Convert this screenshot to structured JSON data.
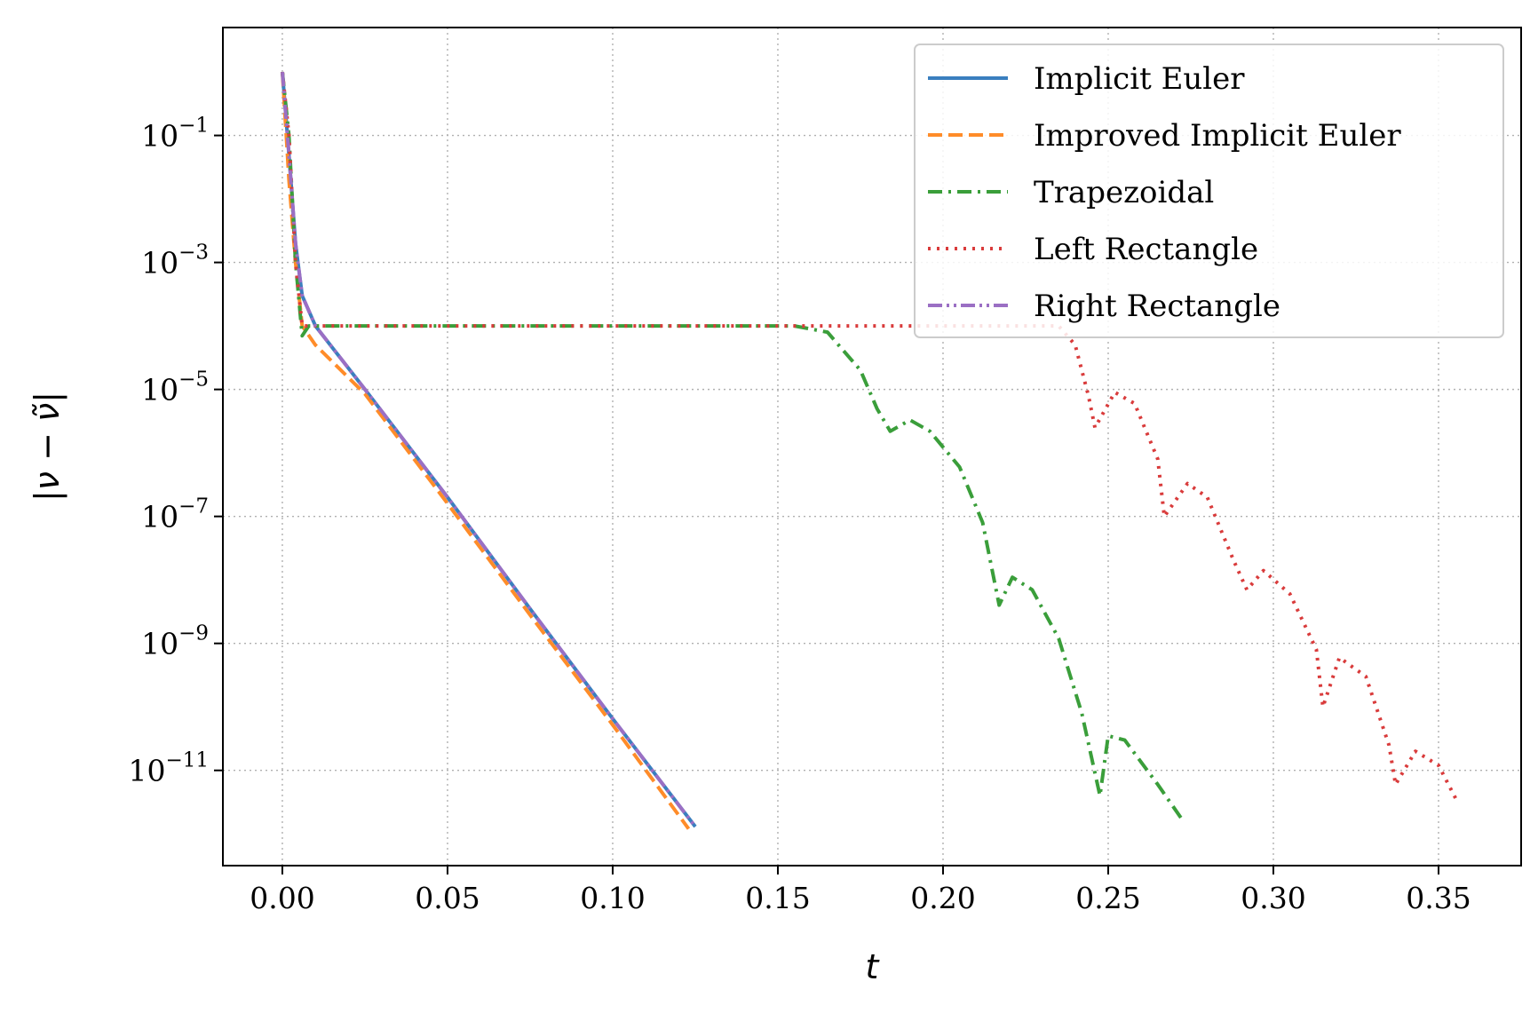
{
  "chart_data": {
    "type": "line",
    "title": "",
    "xlabel": "t",
    "ylabel": "|ν − ν̃|",
    "xlim": [
      -0.018,
      0.375
    ],
    "ylim_log10": [
      -12.5,
      0.7
    ],
    "yscale": "log",
    "grid": true,
    "legend_position": "upper-right",
    "x_ticks": [
      {
        "value": 0.0,
        "label": "0.00"
      },
      {
        "value": 0.05,
        "label": "0.05"
      },
      {
        "value": 0.1,
        "label": "0.10"
      },
      {
        "value": 0.15,
        "label": "0.15"
      },
      {
        "value": 0.2,
        "label": "0.20"
      },
      {
        "value": 0.25,
        "label": "0.25"
      },
      {
        "value": 0.3,
        "label": "0.30"
      },
      {
        "value": 0.35,
        "label": "0.35"
      }
    ],
    "y_ticks": [
      {
        "exp": -1,
        "base": "10",
        "sup": "−1"
      },
      {
        "exp": -3,
        "base": "10",
        "sup": "−3"
      },
      {
        "exp": -5,
        "base": "10",
        "sup": "−5"
      },
      {
        "exp": -7,
        "base": "10",
        "sup": "−7"
      },
      {
        "exp": -9,
        "base": "10",
        "sup": "−9"
      },
      {
        "exp": -11,
        "base": "10",
        "sup": "−11"
      }
    ],
    "series": [
      {
        "name": "Implicit Euler",
        "color": "#3a7fbf",
        "dash": "solid",
        "points": [
          [
            0.0,
            1.0
          ],
          [
            0.002,
            0.05
          ],
          [
            0.004,
            0.002
          ],
          [
            0.006,
            0.0003
          ],
          [
            0.01,
            0.0001
          ],
          [
            0.025,
            1e-05
          ],
          [
            0.05,
            2e-07
          ],
          [
            0.075,
            3.5e-09
          ],
          [
            0.1,
            6.5e-11
          ],
          [
            0.125,
            1.3e-12
          ]
        ]
      },
      {
        "name": "Improved Implicit Euler",
        "color": "#ff8c29",
        "dash": "dashed",
        "points": [
          [
            0.0,
            1.0
          ],
          [
            0.002,
            0.02
          ],
          [
            0.004,
            0.001
          ],
          [
            0.006,
            0.0001
          ],
          [
            0.01,
            5e-05
          ],
          [
            0.025,
            8.5e-06
          ],
          [
            0.05,
            1.6e-07
          ],
          [
            0.075,
            2.8e-09
          ],
          [
            0.1,
            5.2e-11
          ],
          [
            0.123,
            1.2e-12
          ]
        ]
      },
      {
        "name": "Trapezoidal",
        "color": "#3a9e3a",
        "dash": "dashdot",
        "points": [
          [
            0.0,
            1.0
          ],
          [
            0.002,
            0.1
          ],
          [
            0.004,
            0.001
          ],
          [
            0.006,
            7e-05
          ],
          [
            0.008,
            0.0001
          ],
          [
            0.1,
            0.0001
          ],
          [
            0.155,
            0.0001
          ],
          [
            0.165,
            8e-05
          ],
          [
            0.175,
            2e-05
          ],
          [
            0.18,
            5e-06
          ],
          [
            0.184,
            2.2e-06
          ],
          [
            0.19,
            3.3e-06
          ],
          [
            0.196,
            2.2e-06
          ],
          [
            0.205,
            6e-07
          ],
          [
            0.212,
            8e-08
          ],
          [
            0.217,
            4e-09
          ],
          [
            0.221,
            1.1e-08
          ],
          [
            0.227,
            7e-09
          ],
          [
            0.235,
            1.2e-09
          ],
          [
            0.242,
            8e-11
          ],
          [
            0.2475,
            4e-12
          ],
          [
            0.25,
            3.5e-11
          ],
          [
            0.255,
            3e-11
          ],
          [
            0.265,
            6e-12
          ],
          [
            0.272,
            1.8e-12
          ]
        ]
      },
      {
        "name": "Left Rectangle",
        "color": "#d93b3b",
        "dash": "dotted",
        "points": [
          [
            0.0,
            1.0
          ],
          [
            0.002,
            0.1
          ],
          [
            0.004,
            0.001
          ],
          [
            0.006,
            0.0001
          ],
          [
            0.2,
            0.0001
          ],
          [
            0.235,
            0.0001
          ],
          [
            0.24,
            5e-05
          ],
          [
            0.244,
            8e-06
          ],
          [
            0.246,
            2.5e-06
          ],
          [
            0.252,
            9e-06
          ],
          [
            0.258,
            6e-06
          ],
          [
            0.265,
            8e-07
          ],
          [
            0.267,
            1e-07
          ],
          [
            0.274,
            3.3e-07
          ],
          [
            0.28,
            2e-07
          ],
          [
            0.288,
            2e-08
          ],
          [
            0.292,
            7e-09
          ],
          [
            0.297,
            1.4e-08
          ],
          [
            0.305,
            6e-09
          ],
          [
            0.313,
            8e-10
          ],
          [
            0.315,
            1e-10
          ],
          [
            0.32,
            6e-10
          ],
          [
            0.328,
            3e-10
          ],
          [
            0.335,
            2.5e-11
          ],
          [
            0.337,
            6e-12
          ],
          [
            0.343,
            2e-11
          ],
          [
            0.35,
            1.2e-11
          ],
          [
            0.356,
            3e-12
          ]
        ]
      },
      {
        "name": "Right Rectangle",
        "color": "#9b6fc4",
        "dash": "dashdotdot",
        "points": [
          [
            0.0,
            1.0
          ],
          [
            0.002,
            0.05
          ],
          [
            0.004,
            0.002
          ],
          [
            0.006,
            0.0003
          ],
          [
            0.01,
            0.0001
          ],
          [
            0.025,
            1e-05
          ],
          [
            0.05,
            2e-07
          ],
          [
            0.075,
            3.5e-09
          ],
          [
            0.1,
            6.5e-11
          ],
          [
            0.125,
            1.3e-12
          ]
        ]
      }
    ]
  }
}
